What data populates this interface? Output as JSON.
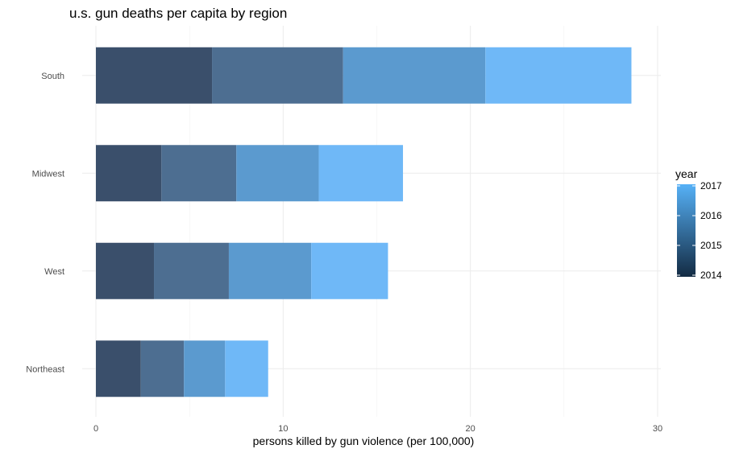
{
  "chart_data": {
    "type": "bar",
    "orientation": "horizontal",
    "stacked": true,
    "title": "u.s. gun deaths per capita by region",
    "xlabel": "persons killed by gun violence (per 100,000)",
    "ylabel": "",
    "xlim": [
      0,
      30
    ],
    "x_ticks": [
      0,
      10,
      20,
      30
    ],
    "grid": true,
    "categories": [
      "South",
      "Midwest",
      "West",
      "Northeast"
    ],
    "series": [
      {
        "name": "2014",
        "color": "#3a4f6b",
        "values": [
          6.2,
          3.5,
          3.1,
          2.4
        ]
      },
      {
        "name": "2015",
        "color": "#4d6e91",
        "values": [
          7.0,
          4.0,
          4.0,
          2.3
        ]
      },
      {
        "name": "2016",
        "color": "#5b9acf",
        "values": [
          7.6,
          4.4,
          4.4,
          2.2
        ]
      },
      {
        "name": "2017",
        "color": "#6fb8f7",
        "values": [
          7.8,
          4.5,
          4.1,
          2.3
        ]
      }
    ],
    "legend": {
      "title": "year",
      "placement": "right",
      "labels": [
        "2017",
        "2016",
        "2015",
        "2014"
      ],
      "gradient": [
        "#132b43",
        "#56b1f7"
      ]
    }
  }
}
